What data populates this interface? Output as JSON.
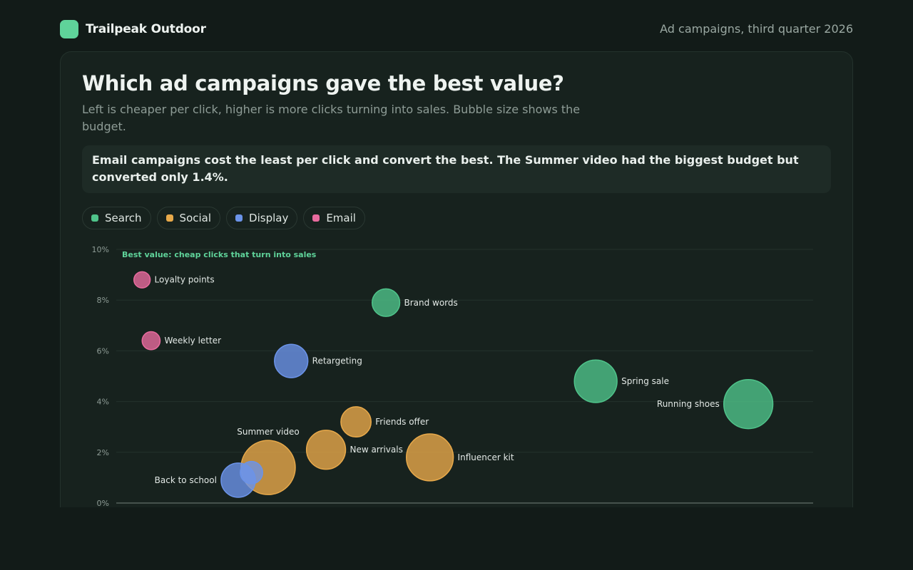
{
  "header": {
    "brand": "Trailpeak Outdoor",
    "period": "Ad campaigns, third quarter 2026"
  },
  "page": {
    "title": "Which ad campaigns gave the best value?",
    "subtitle": "Left is cheaper per click, higher is more clicks turning into sales. Bubble size shows the budget.",
    "callout": "Email campaigns cost the least per click and convert the best. The Summer video had the biggest budget but converted only 1.4%."
  },
  "legend": [
    {
      "label": "Search",
      "color": "#4fc38a"
    },
    {
      "label": "Social",
      "color": "#e8a94a"
    },
    {
      "label": "Display",
      "color": "#6b93e8"
    },
    {
      "label": "Email",
      "color": "#e86b9e"
    }
  ],
  "chart_data": {
    "type": "scatter",
    "variant": "bubble",
    "annotation": "Best value: cheap clicks that turn into sales",
    "y_ticks": [
      "0%",
      "2%",
      "4%",
      "6%",
      "8%",
      "10%"
    ],
    "ylim": [
      0,
      10
    ],
    "xlim": [
      0,
      1
    ],
    "y_unit": "%",
    "grid": true,
    "series": [
      {
        "name": "Search",
        "color": "#4fc38a",
        "points": [
          {
            "label": "Brand words",
            "x": 0.387,
            "y": 7.9,
            "size": 0.26,
            "label_side": "right"
          },
          {
            "label": "Spring sale",
            "x": 0.688,
            "y": 4.8,
            "size": 0.62,
            "label_side": "right"
          },
          {
            "label": "Running shoes",
            "x": 0.907,
            "y": 3.9,
            "size": 0.82,
            "label_side": "left"
          }
        ]
      },
      {
        "name": "Social",
        "color": "#e8a94a",
        "points": [
          {
            "label": "Summer video",
            "x": 0.218,
            "y": 1.4,
            "size": 1.0,
            "label_side": "top"
          },
          {
            "label": "New arrivals",
            "x": 0.301,
            "y": 2.1,
            "size": 0.52,
            "label_side": "right"
          },
          {
            "label": "Friends offer",
            "x": 0.344,
            "y": 3.2,
            "size": 0.31,
            "label_side": "right"
          },
          {
            "label": "Influencer kit",
            "x": 0.45,
            "y": 1.8,
            "size": 0.75,
            "label_side": "right"
          }
        ]
      },
      {
        "name": "Display",
        "color": "#6b93e8",
        "points": [
          {
            "label": "Retargeting",
            "x": 0.251,
            "y": 5.6,
            "size": 0.38,
            "label_side": "right"
          },
          {
            "label": "Back to school",
            "x": 0.175,
            "y": 0.9,
            "size": 0.4,
            "label_side": "left"
          },
          {
            "label": "",
            "x": 0.194,
            "y": 1.2,
            "size": 0.17,
            "label_side": "none"
          }
        ]
      },
      {
        "name": "Email",
        "color": "#e86b9e",
        "points": [
          {
            "label": "Loyalty points",
            "x": 0.037,
            "y": 8.8,
            "size": 0.09,
            "label_side": "right"
          },
          {
            "label": "Weekly letter",
            "x": 0.05,
            "y": 6.4,
            "size": 0.11,
            "label_side": "right"
          }
        ]
      }
    ]
  }
}
